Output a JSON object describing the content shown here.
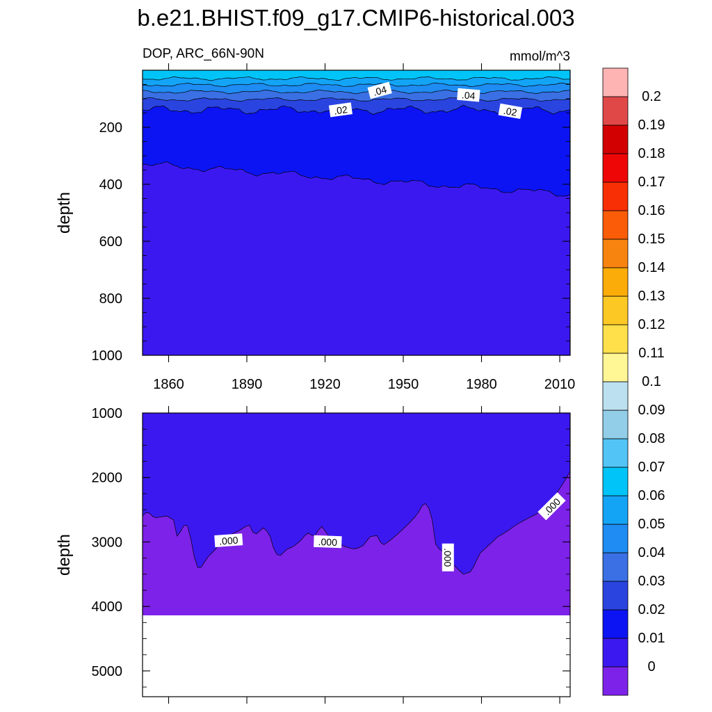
{
  "chart_data": {
    "type": "heatmap",
    "title": "b.e21.BHIST.f09_g17.CMIP6-historical.003",
    "subtitle_left": "DOP, ARC_66N-90N",
    "subtitle_right": "mmol/m^3",
    "ylabel": "depth",
    "x_ticks": [
      "1860",
      "1890",
      "1920",
      "1950",
      "1980",
      "2010"
    ],
    "x_tick_values": [
      1860,
      1890,
      1920,
      1950,
      1980,
      2010
    ],
    "xlim": [
      1850,
      2014
    ],
    "upper_panel": {
      "ylim": [
        1000,
        0
      ],
      "y_ticks": [
        "200",
        "400",
        "600",
        "800",
        "1000"
      ],
      "y_tick_values": [
        200,
        400,
        600,
        800,
        1000
      ],
      "contour_labels": [
        {
          "text": ".04",
          "year": 1941,
          "depth": 72
        },
        {
          "text": ".04",
          "year": 1975,
          "depth": 88
        },
        {
          "text": ".02",
          "year": 1926,
          "depth": 140
        },
        {
          "text": ".02",
          "year": 1991,
          "depth": 145
        }
      ]
    },
    "lower_panel": {
      "ylim": [
        1000,
        5400
      ],
      "y_ticks": [
        "1000",
        "2000",
        "3000",
        "4000",
        "5000"
      ],
      "y_tick_values": [
        1000,
        2000,
        3000,
        4000,
        5000
      ],
      "contour_labels": [
        {
          "text": ".000",
          "year": 1883,
          "depth": 2980
        },
        {
          "text": ".000",
          "year": 1921,
          "depth": 3000
        },
        {
          "text": ".000",
          "year": 1967,
          "depth": 3240
        },
        {
          "text": ".000",
          "year": 2007,
          "depth": 2450
        }
      ]
    },
    "colorbar": {
      "labels": [
        "0",
        "0.01",
        "0.02",
        "0.03",
        "0.04",
        "0.05",
        "0.06",
        "0.07",
        "0.08",
        "0.09",
        "0.1",
        "0.11",
        "0.12",
        "0.13",
        "0.14",
        "0.15",
        "0.16",
        "0.17",
        "0.18",
        "0.19",
        "0.2"
      ],
      "colors": [
        "#7d22e8",
        "#3c18f0",
        "#0c14f4",
        "#2a44e0",
        "#3a70e4",
        "#1e8cf2",
        "#14a4f6",
        "#00c4f8",
        "#52c4f6",
        "#92cee8",
        "#bce0f0",
        "#fff696",
        "#ffe04a",
        "#fcc824",
        "#fcac08",
        "#f88410",
        "#fa5c08",
        "#f82e04",
        "#ee0606",
        "#d20000",
        "#e04848",
        "#ffb4b4"
      ]
    }
  }
}
